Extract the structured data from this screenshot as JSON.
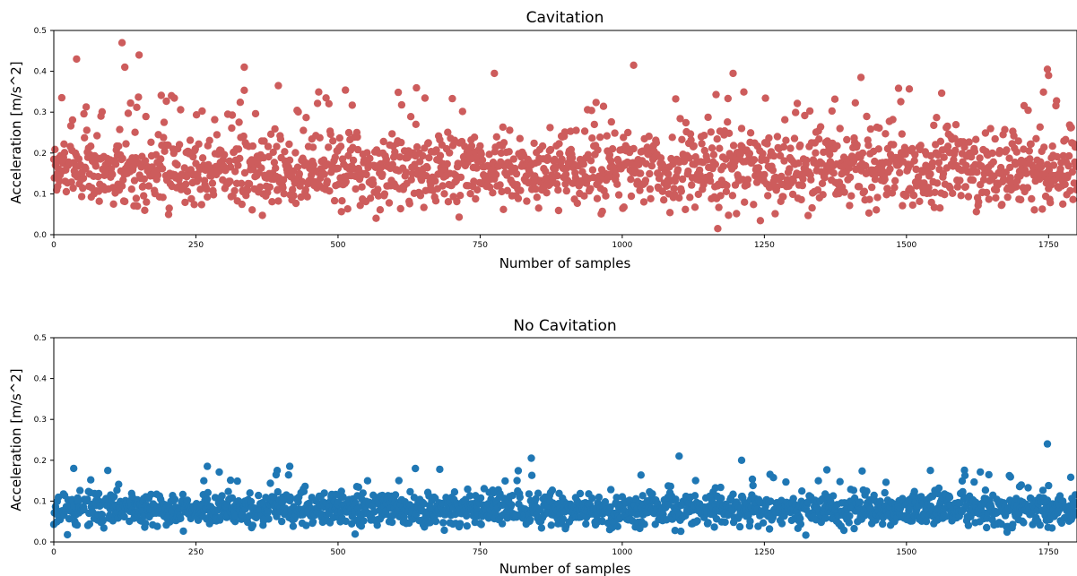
{
  "chart_data": [
    {
      "type": "scatter",
      "title": "Cavitation",
      "xlabel": "Number of samples",
      "ylabel": "Acceleration [m/s^2]",
      "xlim": [
        0,
        1800
      ],
      "ylim": [
        0.0,
        0.5
      ],
      "xticks": [
        "0",
        "250",
        "500",
        "750",
        "1000",
        "1250",
        "1500",
        "1750"
      ],
      "yticks": [
        "0.0",
        "0.1",
        "0.2",
        "0.3",
        "0.4",
        "0.5"
      ],
      "color": "#cd5c5c",
      "n_points": 1800,
      "typical_range": [
        0.03,
        0.3
      ],
      "notable_points": [
        {
          "x": 40,
          "y": 0.43
        },
        {
          "x": 120,
          "y": 0.47
        },
        {
          "x": 125,
          "y": 0.41
        },
        {
          "x": 150,
          "y": 0.44
        },
        {
          "x": 335,
          "y": 0.41
        },
        {
          "x": 395,
          "y": 0.365
        },
        {
          "x": 775,
          "y": 0.395
        },
        {
          "x": 1020,
          "y": 0.415
        },
        {
          "x": 1195,
          "y": 0.395
        },
        {
          "x": 1420,
          "y": 0.385
        },
        {
          "x": 1748,
          "y": 0.405
        },
        {
          "x": 1750,
          "y": 0.39
        },
        {
          "x": 1168,
          "y": 0.015
        }
      ]
    },
    {
      "type": "scatter",
      "title": "No Cavitation",
      "xlabel": "Number of samples",
      "ylabel": "Acceleration [m/s^2]",
      "xlim": [
        0,
        1800
      ],
      "ylim": [
        0.0,
        0.5
      ],
      "xticks": [
        "0",
        "250",
        "500",
        "750",
        "1000",
        "1250",
        "1500",
        "1750"
      ],
      "yticks": [
        "0.0",
        "0.1",
        "0.2",
        "0.3",
        "0.4",
        "0.5"
      ],
      "color": "#1f77b4",
      "n_points": 1800,
      "typical_range": [
        0.01,
        0.15
      ],
      "notable_points": [
        {
          "x": 35,
          "y": 0.18
        },
        {
          "x": 95,
          "y": 0.175
        },
        {
          "x": 270,
          "y": 0.185
        },
        {
          "x": 415,
          "y": 0.185
        },
        {
          "x": 840,
          "y": 0.205
        },
        {
          "x": 1100,
          "y": 0.21
        },
        {
          "x": 1210,
          "y": 0.2
        },
        {
          "x": 1542,
          "y": 0.175
        },
        {
          "x": 1748,
          "y": 0.24
        }
      ]
    }
  ]
}
